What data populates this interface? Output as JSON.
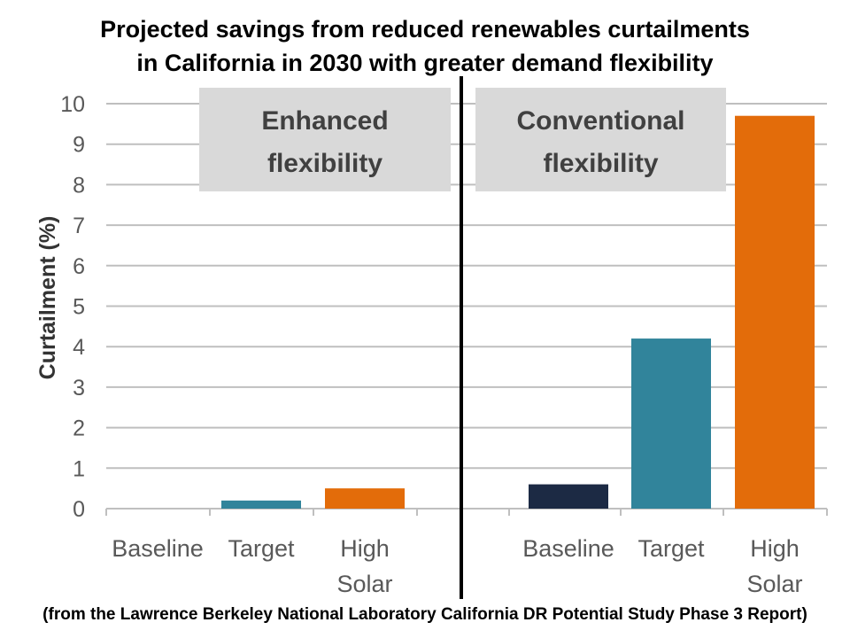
{
  "title_lines": [
    "Projected savings from reduced renewables curtailments",
    "in California in 2030 with greater demand flexibility"
  ],
  "footer": "(from the Lawrence Berkeley National Laboratory California DR Potential Study Phase 3 Report)",
  "colors": {
    "baseline": "#1c2a44",
    "target": "#31849b",
    "high_solar": "#e36c0a",
    "panel_label_bg": "#d9d9d9",
    "grid": "#bfbfbf",
    "divider": "#000000"
  },
  "chart_data": {
    "type": "bar",
    "ylabel": "Curtailment (%)",
    "xlabel": "",
    "ylim": [
      0,
      10
    ],
    "yticks": [
      0,
      1,
      2,
      3,
      4,
      5,
      6,
      7,
      8,
      9,
      10
    ],
    "grid": true,
    "panels": [
      {
        "label_lines": [
          "Enhanced",
          "flexibility"
        ],
        "categories": [
          "Baseline",
          "Target",
          "High Solar"
        ],
        "values": [
          0,
          0.2,
          0.5
        ]
      },
      {
        "label_lines": [
          "Conventional",
          "flexibility"
        ],
        "categories": [
          "Baseline",
          "Target",
          "High Solar"
        ],
        "values": [
          0.6,
          4.2,
          9.7
        ]
      }
    ]
  }
}
